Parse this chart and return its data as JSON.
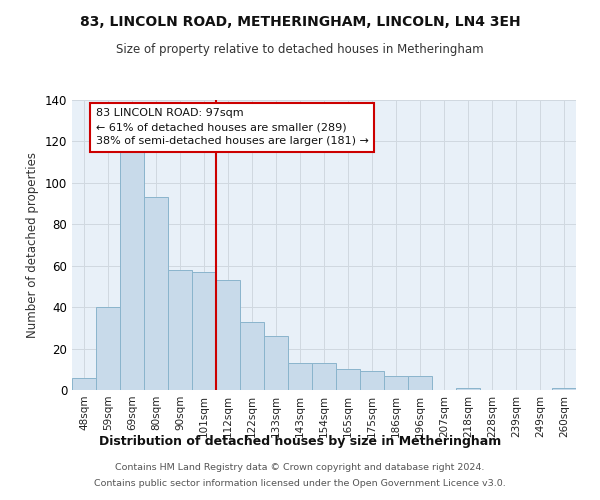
{
  "title": "83, LINCOLN ROAD, METHERINGHAM, LINCOLN, LN4 3EH",
  "subtitle": "Size of property relative to detached houses in Metheringham",
  "xlabel": "Distribution of detached houses by size in Metheringham",
  "ylabel": "Number of detached properties",
  "bar_labels": [
    "48sqm",
    "59sqm",
    "69sqm",
    "80sqm",
    "90sqm",
    "101sqm",
    "112sqm",
    "122sqm",
    "133sqm",
    "143sqm",
    "154sqm",
    "165sqm",
    "175sqm",
    "186sqm",
    "196sqm",
    "207sqm",
    "218sqm",
    "228sqm",
    "239sqm",
    "249sqm",
    "260sqm"
  ],
  "bar_values": [
    6,
    40,
    115,
    93,
    58,
    57,
    53,
    33,
    26,
    13,
    13,
    10,
    9,
    7,
    7,
    0,
    1,
    0,
    0,
    0,
    1
  ],
  "bar_color": "#c8daea",
  "bar_edgecolor": "#8ab4cc",
  "ylim": [
    0,
    140
  ],
  "yticks": [
    0,
    20,
    40,
    60,
    80,
    100,
    120,
    140
  ],
  "vline_x_index": 5,
  "vline_color": "#cc0000",
  "annotation_title": "83 LINCOLN ROAD: 97sqm",
  "annotation_line1": "← 61% of detached houses are smaller (289)",
  "annotation_line2": "38% of semi-detached houses are larger (181) →",
  "annotation_box_color": "#ffffff",
  "annotation_box_edgecolor": "#cc0000",
  "footer1": "Contains HM Land Registry data © Crown copyright and database right 2024.",
  "footer2": "Contains public sector information licensed under the Open Government Licence v3.0.",
  "background_color": "#ffffff",
  "plot_bg_color": "#e8f0f8",
  "grid_color": "#d0d8e0"
}
